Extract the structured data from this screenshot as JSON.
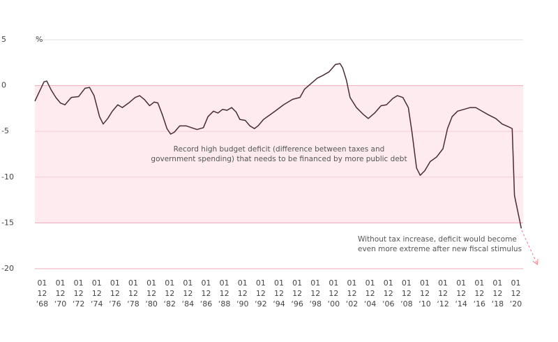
{
  "chart_data": {
    "type": "line",
    "y_unit_label": "%",
    "color": "#4a2a35",
    "shaded_range": [
      -15,
      0
    ],
    "annotations": [
      [
        "Record high budget deficit (difference between taxes and",
        "government spending) that needs to be financed by more public debt"
      ],
      [
        "Without tax increase, deficit would become",
        "even more extreme after new fiscal stimulus"
      ]
    ],
    "xlim": [
      1967.2,
      2020.8
    ],
    "ylim": [
      -20,
      5
    ],
    "yticks": [
      5,
      0,
      -5,
      -10,
      -15,
      -20
    ],
    "grid": true,
    "xticks": [
      {
        "value": 1968,
        "label": [
          "01",
          "12",
          "‘68"
        ]
      },
      {
        "value": 1970,
        "label": [
          "01",
          "12",
          "‘70"
        ]
      },
      {
        "value": 1972,
        "label": [
          "01",
          "12",
          "‘72"
        ]
      },
      {
        "value": 1974,
        "label": [
          "01",
          "12",
          "‘74"
        ]
      },
      {
        "value": 1976,
        "label": [
          "01",
          "12",
          "‘76"
        ]
      },
      {
        "value": 1978,
        "label": [
          "01",
          "12",
          "‘78"
        ]
      },
      {
        "value": 1980,
        "label": [
          "01",
          "12",
          "‘80"
        ]
      },
      {
        "value": 1982,
        "label": [
          "01",
          "12",
          "‘82"
        ]
      },
      {
        "value": 1984,
        "label": [
          "01",
          "12",
          "‘84"
        ]
      },
      {
        "value": 1986,
        "label": [
          "01",
          "12",
          "‘86"
        ]
      },
      {
        "value": 1988,
        "label": [
          "01",
          "12",
          "‘88"
        ]
      },
      {
        "value": 1990,
        "label": [
          "01",
          "12",
          "‘90"
        ]
      },
      {
        "value": 1992,
        "label": [
          "01",
          "12",
          "‘92"
        ]
      },
      {
        "value": 1994,
        "label": [
          "01",
          "12",
          "‘94"
        ]
      },
      {
        "value": 1996,
        "label": [
          "01",
          "12",
          "‘96"
        ]
      },
      {
        "value": 1998,
        "label": [
          "01",
          "12",
          "‘98"
        ]
      },
      {
        "value": 2000,
        "label": [
          "01",
          "12",
          "‘00"
        ]
      },
      {
        "value": 2002,
        "label": [
          "01",
          "12",
          "‘02"
        ]
      },
      {
        "value": 2004,
        "label": [
          "01",
          "12",
          "‘04"
        ]
      },
      {
        "value": 2006,
        "label": [
          "01",
          "12",
          "‘06"
        ]
      },
      {
        "value": 2008,
        "label": [
          "01",
          "12",
          "‘08"
        ]
      },
      {
        "value": 2010,
        "label": [
          "01",
          "12",
          "‘10"
        ]
      },
      {
        "value": 2012,
        "label": [
          "01",
          "12",
          "‘12"
        ]
      },
      {
        "value": 2014,
        "label": [
          "01",
          "12",
          "‘14"
        ]
      },
      {
        "value": 2016,
        "label": [
          "01",
          "12",
          "‘16"
        ]
      },
      {
        "value": 2018,
        "label": [
          "01",
          "12",
          "‘18"
        ]
      },
      {
        "value": 2020,
        "label": [
          "01",
          "12",
          "‘20"
        ]
      }
    ],
    "x": [
      1967.2,
      1968.2,
      1968.5,
      1969,
      1969.5,
      1970,
      1970.5,
      1971.2,
      1972,
      1972.7,
      1973.2,
      1973.7,
      1974.3,
      1974.7,
      1975.2,
      1975.7,
      1976.3,
      1976.8,
      1977.5,
      1978.2,
      1978.7,
      1979.2,
      1979.8,
      1980.3,
      1980.7,
      1981.2,
      1981.7,
      1982.1,
      1982.5,
      1983.1,
      1983.8,
      1984.4,
      1985,
      1985.7,
      1986.2,
      1986.8,
      1987.3,
      1987.8,
      1988.3,
      1988.8,
      1989.3,
      1989.7,
      1990.3,
      1990.8,
      1991.3,
      1991.7,
      1992.3,
      1993,
      1993.7,
      1994.5,
      1995.5,
      1996.3,
      1996.8,
      1997.5,
      1998.2,
      1998.8,
      1999.5,
      2000.2,
      2000.7,
      2001,
      2001.4,
      2001.8,
      2002.5,
      2003.2,
      2003.8,
      2004.5,
      2005.2,
      2005.8,
      2006.5,
      2007,
      2007.6,
      2008.2,
      2008.6,
      2009.1,
      2009.5,
      2010,
      2010.6,
      2011.3,
      2012,
      2012.5,
      2013,
      2013.6,
      2014.3,
      2015,
      2015.6,
      2016.3,
      2017,
      2017.8,
      2018.5,
      2019.2,
      2019.6,
      2019.85,
      2020.6
    ],
    "values": [
      -1.7,
      0.4,
      0.5,
      -0.5,
      -1.3,
      -1.9,
      -2.1,
      -1.3,
      -1.2,
      -0.3,
      -0.2,
      -1.1,
      -3.4,
      -4.2,
      -3.6,
      -2.8,
      -2.1,
      -2.4,
      -1.9,
      -1.3,
      -1.1,
      -1.5,
      -2.2,
      -1.8,
      -1.9,
      -3.2,
      -4.7,
      -5.3,
      -5.1,
      -4.4,
      -4.4,
      -4.6,
      -4.8,
      -4.6,
      -3.4,
      -2.8,
      -3.0,
      -2.6,
      -2.7,
      -2.4,
      -2.9,
      -3.7,
      -3.8,
      -4.4,
      -4.7,
      -4.4,
      -3.7,
      -3.2,
      -2.7,
      -2.1,
      -1.5,
      -1.3,
      -0.4,
      0.2,
      0.8,
      1.1,
      1.5,
      2.3,
      2.4,
      1.9,
      0.6,
      -1.3,
      -2.4,
      -3.1,
      -3.6,
      -3.0,
      -2.2,
      -2.1,
      -1.4,
      -1.1,
      -1.3,
      -2.4,
      -5.1,
      -9.0,
      -9.8,
      -9.3,
      -8.3,
      -7.8,
      -6.9,
      -4.7,
      -3.4,
      -2.8,
      -2.6,
      -2.4,
      -2.4,
      -2.8,
      -3.2,
      -3.6,
      -4.2,
      -4.5,
      -4.7,
      -12,
      -15.6
    ]
  }
}
